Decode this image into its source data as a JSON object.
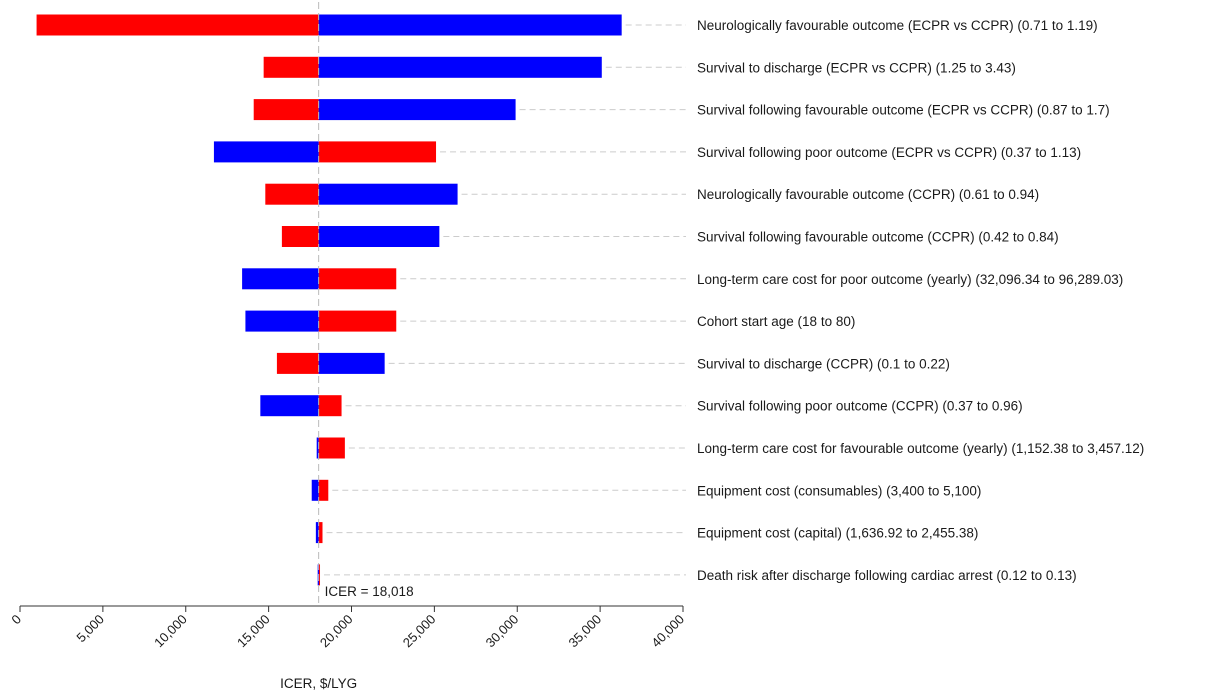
{
  "chart_data": {
    "type": "bar",
    "subtype": "tornado",
    "xlabel": "ICER, $/LYG",
    "xlim": [
      0,
      40000
    ],
    "xticks": [
      0,
      5000,
      10000,
      15000,
      20000,
      25000,
      30000,
      35000,
      40000
    ],
    "xtick_labels": [
      "0",
      "5,000",
      "10,000",
      "15,000",
      "20,000",
      "25,000",
      "30,000",
      "35,000",
      "40,000"
    ],
    "baseline": 18018,
    "baseline_label": "ICER = 18,018",
    "colors": {
      "low": "#ff0000",
      "high": "#0000ff",
      "baseline_line": "#bbbbbb",
      "guide": "#cccccc"
    },
    "legend": "none",
    "bars": [
      {
        "label": "Neurologically favourable outcome  (ECPR vs CCPR) (0.71 to 1.19)",
        "red": 1000,
        "blue": 36300
      },
      {
        "label": "Survival to discharge (ECPR vs CCPR) (1.25 to 3.43)",
        "red": 14700,
        "blue": 35100
      },
      {
        "label": "Survival following favourable outcome (ECPR vs CCPR) (0.87 to 1.7)",
        "red": 14100,
        "blue": 29900
      },
      {
        "label": "Survival following poor outcome (ECPR vs CCPR) (0.37 to 1.13)",
        "red": 25100,
        "blue": 11700
      },
      {
        "label": "Neurologically favourable outcome  (CCPR) (0.61 to 0.94)",
        "red": 14800,
        "blue": 26400
      },
      {
        "label": "Survival following favourable outcome (CCPR) (0.42 to 0.84)",
        "red": 15800,
        "blue": 25300
      },
      {
        "label": "Long-term care cost for poor outcome (yearly) (32,096.34 to 96,289.03)",
        "red": 22700,
        "blue": 13400
      },
      {
        "label": "Cohort start age (18 to 80)",
        "red": 22700,
        "blue": 13600
      },
      {
        "label": "Survival to discharge (CCPR) (0.1 to 0.22)",
        "red": 15500,
        "blue": 22000
      },
      {
        "label": "Survival following poor outcome (CCPR) (0.37 to 0.96)",
        "red": 19400,
        "blue": 14500
      },
      {
        "label": "Long-term care cost for favourable outcome (yearly) (1,152.38 to 3,457.12)",
        "red": 19600,
        "blue": 17900
      },
      {
        "label": "Equipment cost (consumables) (3,400 to 5,100)",
        "red": 18600,
        "blue": 17600
      },
      {
        "label": "Equipment cost (capital) (1,636.92 to 2,455.38)",
        "red": 18250,
        "blue": 17850
      },
      {
        "label": "Death risk after discharge following cardiac arrest (0.12 to 0.13)",
        "red": 18100,
        "blue": 17960
      }
    ]
  }
}
